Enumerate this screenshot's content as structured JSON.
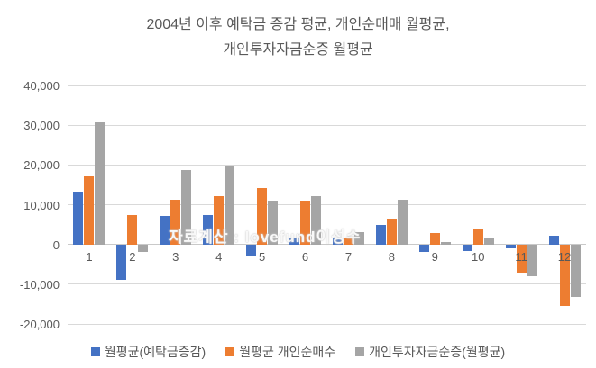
{
  "chart_data": {
    "type": "bar",
    "title": "2004년 이후 예탁금 증감 평균, 개인순매매 월평균, 개인투자자금순증 월평균",
    "title_lines": [
      "2004년 이후 예탁금 증감 평균, 개인순매매 월평균,",
      "개인투자자금순증 월평균"
    ],
    "categories": [
      "1",
      "2",
      "3",
      "4",
      "5",
      "6",
      "7",
      "8",
      "9",
      "10",
      "11",
      "12"
    ],
    "series": [
      {
        "name": "월평균(예탁금증감)",
        "color": "#4472C4",
        "values": [
          13300,
          -8900,
          7200,
          7400,
          -3000,
          1500,
          1800,
          4800,
          -2000,
          -1700,
          -1000,
          2200
        ]
      },
      {
        "name": "월평균 개인순매수",
        "color": "#ED7D31",
        "values": [
          17200,
          7300,
          11300,
          12100,
          14300,
          11000,
          1700,
          6400,
          2800,
          3900,
          -7200,
          -15400
        ]
      },
      {
        "name": "개인투자자금순증(월평균)",
        "color": "#A5A5A5",
        "values": [
          30700,
          -1800,
          18700,
          19700,
          11100,
          12100,
          3100,
          11200,
          500,
          1700,
          -8100,
          -13200
        ]
      }
    ],
    "ylim": [
      -20000,
      40000
    ],
    "ytick_interval": 10000,
    "ytick_labels": [
      "40,000",
      "30,000",
      "20,000",
      "10,000",
      "0",
      "-10,000",
      "-20,000"
    ],
    "grid": true,
    "legend_position": "bottom",
    "watermark": "자료계산 : lovefund이성수"
  }
}
